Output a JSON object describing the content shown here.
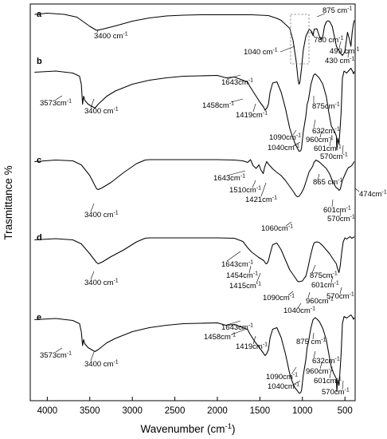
{
  "chart_data": {
    "type": "line",
    "xlabel": "Wavenumber (cm",
    "xlabel_superscript": "-1",
    "xlabel_suffix": ")",
    "ylabel": "Trasmittance %",
    "xlim": [
      4200,
      380
    ],
    "x_ticks": [
      4000,
      3500,
      3000,
      2500,
      2000,
      1500,
      1000,
      500
    ],
    "y_ticks": [],
    "grid": false,
    "legend": "none",
    "series": [
      {
        "name": "a",
        "offset": 92,
        "x": [
          4150,
          4000,
          3800,
          3650,
          3500,
          3420,
          3350,
          3200,
          3000,
          2800,
          2600,
          2400,
          2200,
          2000,
          1800,
          1600,
          1400,
          1300,
          1250,
          1200,
          1150,
          1110,
          1075,
          1050,
          1040,
          1030,
          1010,
          990,
          960,
          920,
          890,
          875,
          860,
          830,
          800,
          780,
          760,
          740,
          720,
          700,
          680,
          650,
          620,
          600,
          560,
          530,
          510,
          499,
          490,
          470,
          450,
          430,
          415,
          400,
          390
        ],
        "y": [
          93.5,
          93.8,
          93.5,
          92.8,
          90.5,
          89.5,
          89.8,
          90.6,
          91.8,
          92.6,
          93.1,
          93.3,
          93.4,
          93.4,
          93.4,
          93.4,
          93.2,
          92.5,
          92,
          91,
          90,
          87,
          82,
          77,
          76,
          76.5,
          80,
          84.5,
          88,
          89.8,
          89.2,
          88.2,
          89.8,
          89.9,
          88,
          87.2,
          88,
          90.5,
          91.6,
          91.9,
          91.7,
          90.5,
          87.5,
          85.5,
          84,
          83.2,
          83.8,
          84.5,
          86,
          89,
          87.5,
          85.5,
          89,
          91.2,
          92
        ]
      },
      {
        "name": "b",
        "offset": 77,
        "x": [
          4150,
          3900,
          3700,
          3620,
          3600,
          3585,
          3573,
          3560,
          3520,
          3440,
          3400,
          3300,
          3200,
          3000,
          2800,
          2600,
          2400,
          2200,
          2000,
          1900,
          1800,
          1700,
          1643,
          1620,
          1560,
          1500,
          1458,
          1440,
          1419,
          1400,
          1380,
          1350,
          1300,
          1250,
          1200,
          1150,
          1120,
          1100,
          1090,
          1060,
          1040,
          1020,
          1010,
          990,
          960,
          945,
          930,
          900,
          870,
          850,
          830,
          800,
          760,
          720,
          690,
          660,
          632,
          620,
          601,
          595,
          585,
          570,
          560,
          545,
          530,
          510,
          480,
          455,
          430,
          410,
          400,
          390
        ],
        "y": [
          78,
          78.3,
          77.8,
          77,
          75,
          70,
          72,
          71,
          70,
          69,
          70,
          72,
          73.3,
          75,
          76,
          76.6,
          77,
          77.1,
          77.2,
          76.6,
          76.8,
          76,
          75.5,
          74.5,
          72.5,
          70.5,
          69.3,
          68.5,
          69,
          70,
          73,
          75.3,
          75.6,
          73,
          69,
          64,
          62,
          61,
          60.3,
          59,
          58.2,
          58.3,
          59,
          63,
          67,
          70,
          71,
          75,
          77.2,
          77.6,
          77.2,
          76.5,
          75,
          72,
          68,
          64.5,
          63.5,
          63,
          62,
          58.5,
          61.5,
          60,
          63,
          68,
          76.5,
          78.3,
          77.8,
          78.4,
          79,
          78.2,
          77.6,
          78.2
        ]
      },
      {
        "name": "c",
        "offset": 62,
        "x": [
          4150,
          3900,
          3700,
          3600,
          3500,
          3420,
          3400,
          3350,
          3250,
          3100,
          2950,
          2850,
          2800,
          2600,
          2400,
          2200,
          2000,
          1800,
          1700,
          1643,
          1610,
          1580,
          1545,
          1510,
          1490,
          1460,
          1445,
          1421,
          1400,
          1350,
          1300,
          1250,
          1200,
          1150,
          1100,
          1080,
          1060,
          1040,
          1010,
          980,
          950,
          920,
          880,
          865,
          840,
          800,
          760,
          720,
          680,
          640,
          601,
          585,
          570,
          555,
          530,
          505,
          490,
          474,
          460,
          440,
          420,
          405,
          390
        ],
        "y": [
          63,
          63.4,
          63.2,
          62.2,
          59.5,
          56.2,
          56,
          56.5,
          57.8,
          60.3,
          62.5,
          63.4,
          63.5,
          63.5,
          63.5,
          63.5,
          63.5,
          63.4,
          63.2,
          62.8,
          63.5,
          62,
          61.3,
          62.2,
          61,
          60,
          61.6,
          63,
          62.4,
          61.2,
          60.3,
          59.5,
          58.3,
          56.8,
          55.3,
          54.6,
          54.2,
          54.3,
          55.2,
          56.5,
          58.5,
          60.5,
          61.8,
          62.8,
          63.4,
          62.9,
          62.1,
          61.3,
          59.9,
          57.8,
          56.4,
          56.3,
          55.8,
          56.1,
          58.3,
          59.5,
          60.3,
          61,
          61.5,
          61.7,
          62,
          62.5,
          63
        ]
      },
      {
        "name": "d",
        "offset": 47,
        "x": [
          4150,
          3900,
          3700,
          3600,
          3500,
          3420,
          3400,
          3350,
          3250,
          3100,
          2950,
          2850,
          2800,
          2600,
          2400,
          2200,
          2000,
          1800,
          1700,
          1643,
          1600,
          1520,
          1454,
          1430,
          1415,
          1400,
          1380,
          1350,
          1300,
          1250,
          1200,
          1150,
          1100,
          1090,
          1060,
          1040,
          1020,
          1000,
          990,
          975,
          960,
          940,
          920,
          900,
          875,
          860,
          830,
          800,
          760,
          720,
          680,
          640,
          601,
          590,
          570,
          555,
          540,
          520,
          500,
          480,
          460,
          440,
          420,
          400,
          390
        ],
        "y": [
          48,
          48.3,
          48,
          47,
          44.5,
          42.3,
          42,
          42.5,
          43.8,
          45.5,
          47.5,
          48.4,
          48.5,
          48.5,
          48.5,
          48.5,
          48.5,
          48.4,
          47.6,
          46,
          45,
          43.7,
          42.8,
          42,
          42.1,
          42.8,
          44.5,
          46.8,
          47.2,
          45.5,
          43,
          40.5,
          39,
          38.7,
          37.7,
          37.5,
          37.6,
          37.7,
          38,
          38.5,
          38.9,
          40.5,
          42.5,
          44.5,
          46.5,
          47.3,
          47.5,
          47.3,
          46.5,
          45.5,
          44.5,
          43.2,
          42,
          41,
          39.8,
          41.5,
          44.5,
          47.5,
          48.5,
          48.2,
          48.5,
          48.8,
          48.4,
          48.6,
          48.8
        ]
      },
      {
        "name": "e",
        "offset": 32,
        "x": [
          4150,
          3900,
          3700,
          3620,
          3600,
          3585,
          3573,
          3560,
          3520,
          3440,
          3400,
          3300,
          3200,
          3000,
          2800,
          2600,
          2400,
          2200,
          2000,
          1900,
          1800,
          1700,
          1643,
          1620,
          1560,
          1500,
          1458,
          1440,
          1419,
          1400,
          1380,
          1350,
          1300,
          1250,
          1200,
          1150,
          1120,
          1100,
          1090,
          1060,
          1040,
          1020,
          1010,
          990,
          960,
          945,
          930,
          900,
          875,
          850,
          830,
          800,
          760,
          720,
          690,
          660,
          632,
          620,
          601,
          595,
          585,
          570,
          560,
          545,
          530,
          510,
          480,
          455,
          430,
          410,
          400,
          390
        ],
        "y": [
          33,
          33.3,
          32.8,
          32,
          30,
          26.5,
          28,
          27,
          26,
          25,
          25.5,
          27.2,
          28.3,
          30,
          31,
          31.6,
          32,
          32.1,
          32.2,
          31.6,
          31.8,
          31,
          30.5,
          29.5,
          27.5,
          25.8,
          24.6,
          24,
          24.5,
          25.5,
          28.5,
          30.6,
          31,
          28.5,
          24.5,
          19.5,
          17.5,
          16.5,
          16,
          15.2,
          14.6,
          14.7,
          15.3,
          19,
          23,
          26,
          27.3,
          31,
          33,
          33.5,
          33.2,
          32.5,
          30.8,
          28,
          24.5,
          21,
          19.5,
          19,
          18.2,
          15,
          18,
          16.5,
          19.5,
          24.5,
          32,
          33.8,
          33.4,
          33.8,
          34.2,
          33.6,
          33.1,
          33.5
        ]
      }
    ],
    "annotations": [
      {
        "panel": "a",
        "text": "3400 cm",
        "sup": "-1"
      },
      {
        "panel": "a",
        "text": "1040 cm",
        "sup": "-1"
      },
      {
        "panel": "a",
        "text": "875 cm",
        "sup": "-1"
      },
      {
        "panel": "a",
        "text": "780 cm",
        "sup": "-1"
      },
      {
        "panel": "a",
        "text": "499 cm",
        "sup": "-1"
      },
      {
        "panel": "a",
        "text": "430 cm",
        "sup": "-1"
      },
      {
        "panel": "b",
        "text": "1643cm",
        "sup": "-1"
      },
      {
        "panel": "b",
        "text": "3573cm",
        "sup": "-1"
      },
      {
        "panel": "b",
        "text": "3400 cm",
        "sup": "-1"
      },
      {
        "panel": "b",
        "text": "1458cm",
        "sup": "-1"
      },
      {
        "panel": "b",
        "text": "1419cm",
        "sup": "-1"
      },
      {
        "panel": "b",
        "text": "875cm",
        "sup": "-1"
      },
      {
        "panel": "b",
        "text": "632cm",
        "sup": "-1"
      },
      {
        "panel": "b",
        "text": "1090cm",
        "sup": "-1"
      },
      {
        "panel": "b",
        "text": "960cm",
        "sup": "-1"
      },
      {
        "panel": "b",
        "text": "1040cm",
        "sup": "-1"
      },
      {
        "panel": "b",
        "text": "601cm",
        "sup": "-1"
      },
      {
        "panel": "b",
        "text": "570cm",
        "sup": "-1"
      },
      {
        "panel": "c",
        "text": "1643cm",
        "sup": "-1"
      },
      {
        "panel": "c",
        "text": "1510cm",
        "sup": "-1"
      },
      {
        "panel": "c",
        "text": "1421cm",
        "sup": "-1"
      },
      {
        "panel": "c",
        "text": "865 cm",
        "sup": "-1"
      },
      {
        "panel": "c",
        "text": "474cm",
        "sup": "-1"
      },
      {
        "panel": "c",
        "text": "3400 cm",
        "sup": "-1"
      },
      {
        "panel": "c",
        "text": "601cm",
        "sup": "-1"
      },
      {
        "panel": "c",
        "text": "570cm",
        "sup": "-1"
      },
      {
        "panel": "c",
        "text": "1060cm",
        "sup": "-1"
      },
      {
        "panel": "d",
        "text": "1643cm",
        "sup": "-1"
      },
      {
        "panel": "d",
        "text": "1454cm",
        "sup": "-1"
      },
      {
        "panel": "d",
        "text": "1415cm",
        "sup": "-1"
      },
      {
        "panel": "d",
        "text": "3400 cm",
        "sup": "-1"
      },
      {
        "panel": "d",
        "text": "875cm",
        "sup": "-1"
      },
      {
        "panel": "d",
        "text": "601cm",
        "sup": "-1"
      },
      {
        "panel": "d",
        "text": "570cm",
        "sup": "-1"
      },
      {
        "panel": "d",
        "text": "1090cm",
        "sup": "-1"
      },
      {
        "panel": "d",
        "text": "960cm",
        "sup": "-1"
      },
      {
        "panel": "d",
        "text": "1040cm",
        "sup": "-1"
      },
      {
        "panel": "e",
        "text": "1643cm",
        "sup": "-1"
      },
      {
        "panel": "e",
        "text": "1458cm",
        "sup": "-1"
      },
      {
        "panel": "e",
        "text": "1419cm",
        "sup": "-1"
      },
      {
        "panel": "e",
        "text": "875 cm",
        "sup": "-1"
      },
      {
        "panel": "e",
        "text": "3573cm",
        "sup": "-1"
      },
      {
        "panel": "e",
        "text": "3400 cm",
        "sup": "-1"
      },
      {
        "panel": "e",
        "text": "632cm",
        "sup": "-1"
      },
      {
        "panel": "e",
        "text": "960cm",
        "sup": "-1"
      },
      {
        "panel": "e",
        "text": "601cm",
        "sup": "-1"
      },
      {
        "panel": "e",
        "text": "1090cm",
        "sup": "-1"
      },
      {
        "panel": "e",
        "text": "1040cm",
        "sup": "-1"
      },
      {
        "panel": "e",
        "text": "570cm",
        "sup": "-1"
      }
    ]
  }
}
